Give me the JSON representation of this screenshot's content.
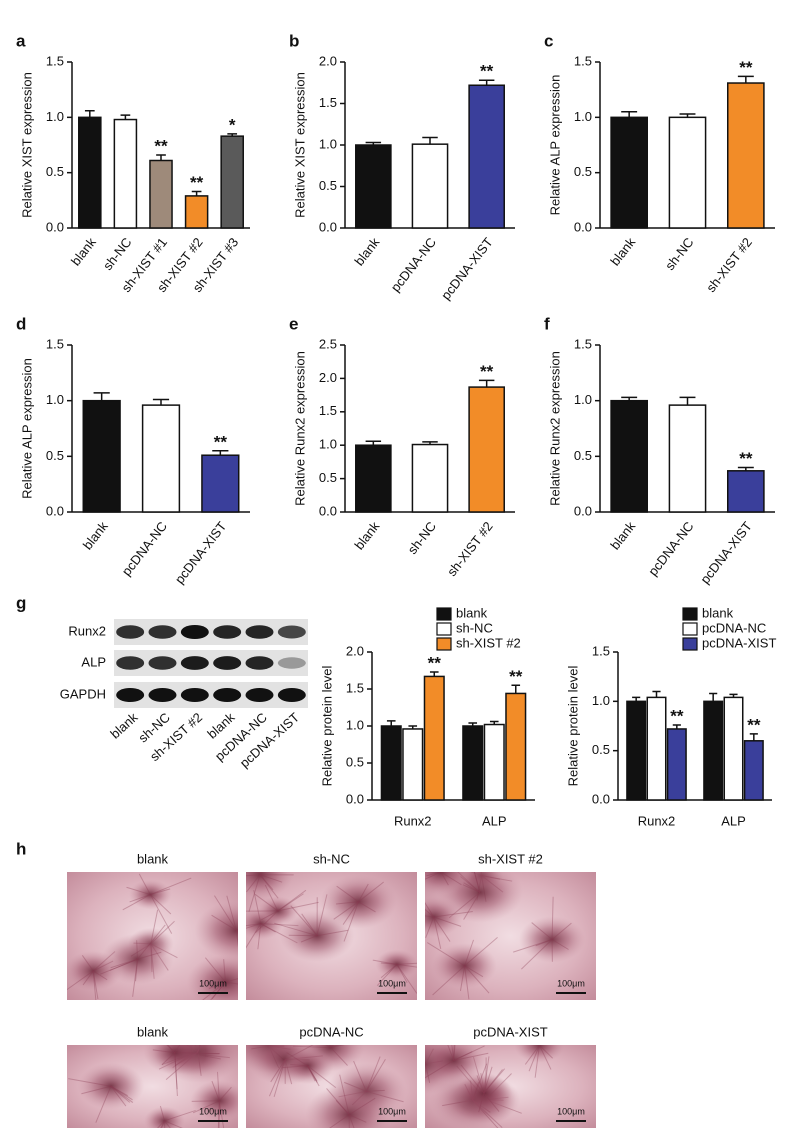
{
  "chart_data": [
    {
      "type": "bar",
      "panel": "a",
      "ylabel": "Relative XIST expression",
      "categories": [
        "blank",
        "sh-NC",
        "sh-XIST #1",
        "sh-XIST #2",
        "sh-XIST #3"
      ],
      "values": [
        1.0,
        0.98,
        0.61,
        0.29,
        0.83
      ],
      "errors": [
        0.06,
        0.04,
        0.05,
        0.04,
        0.02
      ],
      "colors": [
        "#111111",
        "#ffffff",
        "#9e8a7a",
        "#f28c28",
        "#5a5a5a"
      ],
      "stars": [
        null,
        null,
        "**",
        "**",
        "*"
      ],
      "ylim": [
        0,
        1.5
      ],
      "yticks": [
        {
          "value": 0,
          "label": "0.0"
        },
        0.5,
        {
          "value": 1,
          "label": "1.0"
        },
        1.5
      ]
    },
    {
      "type": "bar",
      "panel": "b",
      "ylabel": "Relative XIST expression",
      "categories": [
        "blank",
        "pcDNA-NC",
        "pcDNA-XIST"
      ],
      "values": [
        1.0,
        1.01,
        1.72
      ],
      "errors": [
        0.03,
        0.08,
        0.06
      ],
      "colors": [
        "#111111",
        "#ffffff",
        "#3a3f9b"
      ],
      "stars": [
        null,
        null,
        "**"
      ],
      "ylim": [
        0,
        2
      ],
      "yticks": [
        {
          "value": 0,
          "label": "0.0"
        },
        0.5,
        {
          "value": 1,
          "label": "1.0"
        },
        1.5,
        {
          "value": 2,
          "label": "2.0"
        }
      ]
    },
    {
      "type": "bar",
      "panel": "c",
      "ylabel": "Relative ALP expression",
      "categories": [
        "blank",
        "sh-NC",
        "sh-XIST #2"
      ],
      "values": [
        1.0,
        1.0,
        1.31
      ],
      "errors": [
        0.05,
        0.03,
        0.06
      ],
      "colors": [
        "#111111",
        "#ffffff",
        "#f28c28"
      ],
      "stars": [
        null,
        null,
        "**"
      ],
      "ylim": [
        0,
        1.5
      ],
      "yticks": [
        {
          "value": 0,
          "label": "0.0"
        },
        0.5,
        {
          "value": 1,
          "label": "1.0"
        },
        1.5
      ]
    },
    {
      "type": "bar",
      "panel": "d",
      "ylabel": "Relative ALP expression",
      "categories": [
        "blank",
        "pcDNA-NC",
        "pcDNA-XIST"
      ],
      "values": [
        1.0,
        0.96,
        0.51
      ],
      "errors": [
        0.07,
        0.05,
        0.04
      ],
      "colors": [
        "#111111",
        "#ffffff",
        "#3a3f9b"
      ],
      "stars": [
        null,
        null,
        "**"
      ],
      "ylim": [
        0,
        1.5
      ],
      "yticks": [
        {
          "value": 0,
          "label": "0.0"
        },
        0.5,
        {
          "value": 1,
          "label": "1.0"
        },
        1.5
      ]
    },
    {
      "type": "bar",
      "panel": "e",
      "ylabel": "Relative Runx2 expression",
      "categories": [
        "blank",
        "sh-NC",
        "sh-XIST #2"
      ],
      "values": [
        1.0,
        1.01,
        1.87
      ],
      "errors": [
        0.06,
        0.04,
        0.1
      ],
      "colors": [
        "#111111",
        "#ffffff",
        "#f28c28"
      ],
      "stars": [
        null,
        null,
        "**"
      ],
      "ylim": [
        0,
        2.5
      ],
      "yticks": [
        {
          "value": 0,
          "label": "0.0"
        },
        0.5,
        {
          "value": 1,
          "label": "1.0"
        },
        1.5,
        {
          "value": 2,
          "label": "2.0"
        },
        2.5
      ]
    },
    {
      "type": "bar",
      "panel": "f",
      "ylabel": "Relative Runx2 expression",
      "categories": [
        "blank",
        "pcDNA-NC",
        "pcDNA-XIST"
      ],
      "values": [
        1.0,
        0.96,
        0.37
      ],
      "errors": [
        0.03,
        0.07,
        0.03
      ],
      "colors": [
        "#111111",
        "#ffffff",
        "#3a3f9b"
      ],
      "stars": [
        null,
        null,
        "**"
      ],
      "ylim": [
        0,
        1.5
      ],
      "yticks": [
        {
          "value": 0,
          "label": "0.0"
        },
        0.5,
        {
          "value": 1,
          "label": "1.0"
        },
        1.5
      ]
    },
    {
      "type": "grouped_bar",
      "ylabel": "Relative protein level",
      "categories": [
        "Runx2",
        "ALP"
      ],
      "series": [
        {
          "name": "blank",
          "color": "#111111",
          "values": [
            1.0,
            1.0
          ],
          "errors": [
            0.07,
            0.04
          ],
          "stars": [
            null,
            null
          ]
        },
        {
          "name": "sh-NC",
          "color": "#ffffff",
          "values": [
            0.96,
            1.02
          ],
          "errors": [
            0.04,
            0.04
          ],
          "stars": [
            null,
            null
          ]
        },
        {
          "name": "sh-XIST #2",
          "color": "#f28c28",
          "values": [
            1.67,
            1.44
          ],
          "errors": [
            0.06,
            0.11
          ],
          "stars": [
            "**",
            "**"
          ]
        }
      ],
      "ylim": [
        0,
        2
      ],
      "yticks": [
        {
          "value": 0,
          "label": "0.0"
        },
        0.5,
        {
          "value": 1,
          "label": "1.0"
        },
        1.5,
        {
          "value": 2,
          "label": "2.0"
        }
      ]
    },
    {
      "type": "grouped_bar",
      "ylabel": "Relative protein level",
      "categories": [
        "Runx2",
        "ALP"
      ],
      "series": [
        {
          "name": "blank",
          "color": "#111111",
          "values": [
            1.0,
            1.0
          ],
          "errors": [
            0.04,
            0.08
          ],
          "stars": [
            null,
            null
          ]
        },
        {
          "name": "pcDNA-NC",
          "color": "#ffffff",
          "values": [
            1.04,
            1.04
          ],
          "errors": [
            0.06,
            0.03
          ],
          "stars": [
            null,
            null
          ]
        },
        {
          "name": "pcDNA-XIST",
          "color": "#3a3f9b",
          "values": [
            0.72,
            0.6
          ],
          "errors": [
            0.04,
            0.07
          ],
          "stars": [
            "**",
            "**"
          ]
        }
      ],
      "ylim": [
        0,
        1.5
      ],
      "yticks": [
        {
          "value": 0,
          "label": "0.0"
        },
        0.5,
        {
          "value": 1,
          "label": "1.0"
        },
        1.5
      ]
    }
  ],
  "blot": {
    "panel": "g",
    "rows": [
      "Runx2",
      "ALP",
      "GAPDH"
    ],
    "lanes": [
      "blank",
      "sh-NC",
      "sh-XIST #2",
      "blank",
      "pcDNA-NC",
      "pcDNA-XIST"
    ]
  },
  "micrographs": {
    "panel": "h",
    "captions": [
      "blank",
      "sh-NC",
      "sh-XIST #2",
      "blank",
      "pcDNA-NC",
      "pcDNA-XIST"
    ],
    "scale_bar": "100μm"
  }
}
